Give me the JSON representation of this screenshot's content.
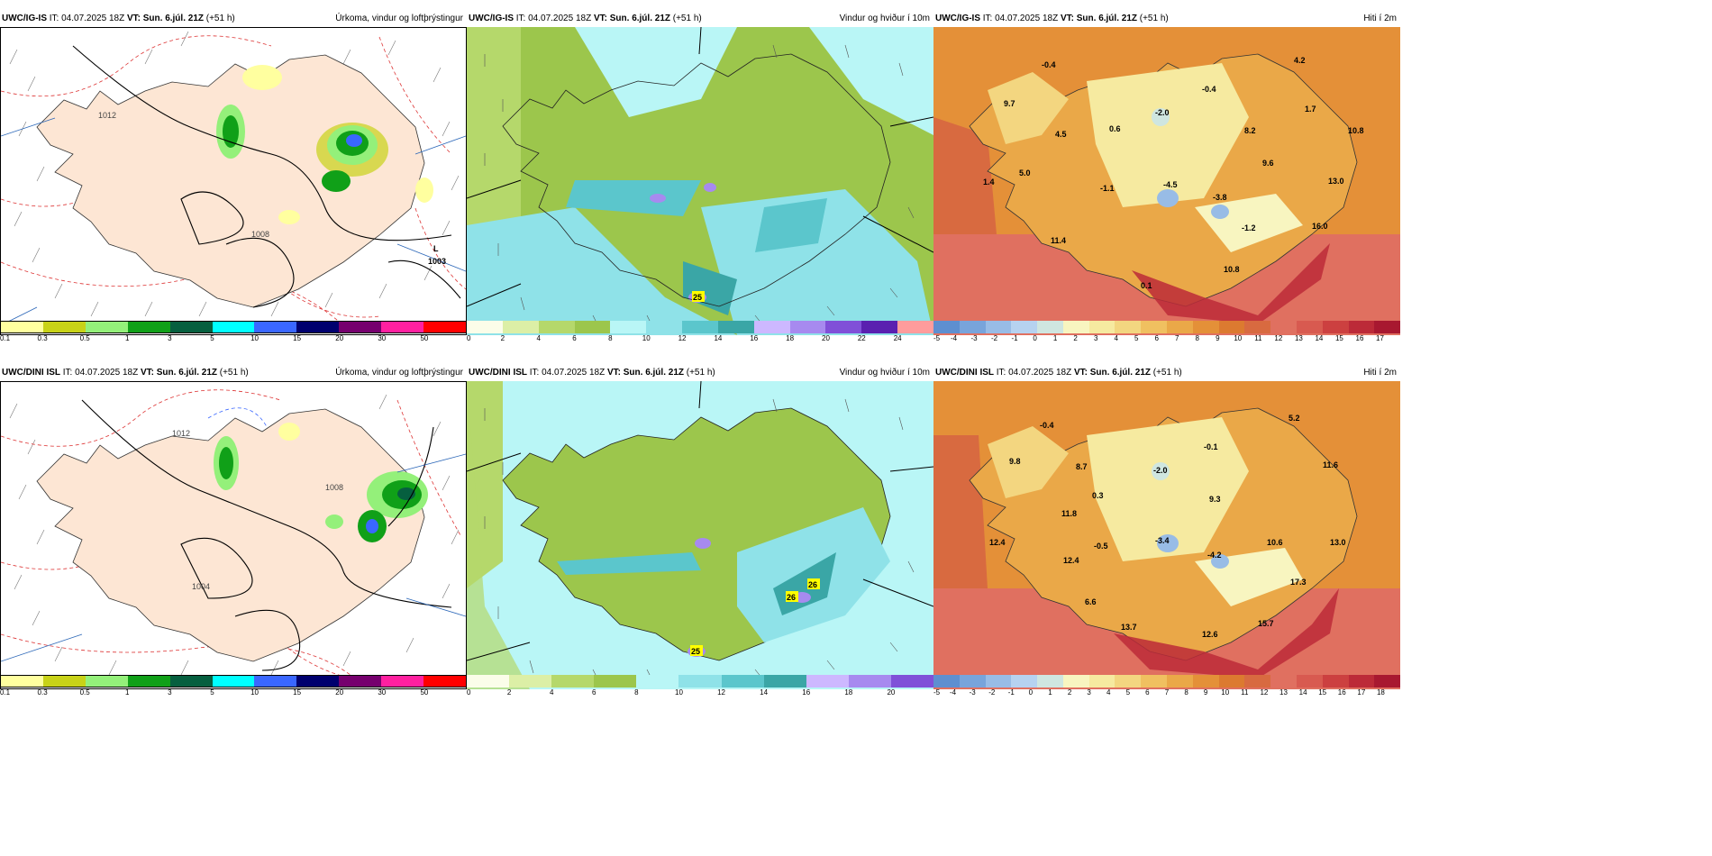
{
  "panels": [
    {
      "model": "UWC/IG-IS",
      "it": "IT: 04.07.2025 18Z",
      "vt": "VT: Sun. 6.júl. 21Z",
      "lead": "(+51 h)",
      "title": "Úrkoma, vindur og loftþrýstingur"
    },
    {
      "model": "UWC/IG-IS",
      "it": "IT: 04.07.2025 18Z",
      "vt": "VT: Sun. 6.júl. 21Z",
      "lead": "(+51 h)",
      "title": "Vindur og hviður í 10m"
    },
    {
      "model": "UWC/IG-IS",
      "it": "IT: 04.07.2025 18Z",
      "vt": "VT: Sun. 6.júl. 21Z",
      "lead": "(+51 h)",
      "title": "Hiti í 2m"
    },
    {
      "model": "UWC/DINI ISL",
      "it": "IT: 04.07.2025 18Z",
      "vt": "VT: Sun. 6.júl. 21Z",
      "lead": "(+51 h)",
      "title": "Úrkoma, vindur og loftþrýstingur"
    },
    {
      "model": "UWC/DINI ISL",
      "it": "IT: 04.07.2025 18Z",
      "vt": "VT: Sun. 6.júl. 21Z",
      "lead": "(+51 h)",
      "title": "Vindur og hviður í 10m"
    },
    {
      "model": "UWC/DINI ISL",
      "it": "IT: 04.07.2025 18Z",
      "vt": "VT: Sun. 6.júl. 21Z",
      "lead": "(+51 h)",
      "title": "Hiti í 2m"
    }
  ],
  "precip_scale": {
    "colors": [
      "#ffff9f",
      "#c8d218",
      "#94f07a",
      "#10a018",
      "#065f3f",
      "#00ffff",
      "#3a67ff",
      "#00006e",
      "#76006e",
      "#ff20a0",
      "#ff0000"
    ],
    "ticks": [
      "0.1",
      "0.3",
      "0.5",
      "1",
      "3",
      "5",
      "10",
      "15",
      "20",
      "30",
      "50"
    ]
  },
  "wind_scale_top": {
    "colors": [
      "#fbfde9",
      "#dcefa6",
      "#b5d86b",
      "#9cc64c",
      "#b9f6f6",
      "#8fe2e8",
      "#5bc6cc",
      "#3aa6a6",
      "#cdb8ff",
      "#a78aef",
      "#8050d8",
      "#5a20b0",
      "#ff9c9c"
    ],
    "ticks": [
      "0",
      "2",
      "4",
      "6",
      "8",
      "10",
      "12",
      "14",
      "16",
      "18",
      "20",
      "22",
      "24"
    ]
  },
  "wind_scale_bottom": {
    "colors": [
      "#fbfde9",
      "#dcefa6",
      "#b5d86b",
      "#9cc64c",
      "#b9f6f6",
      "#8fe2e8",
      "#5bc6cc",
      "#3aa6a6",
      "#cdb8ff",
      "#a78aef",
      "#8050d8"
    ],
    "ticks": [
      "0",
      "2",
      "4",
      "6",
      "8",
      "10",
      "12",
      "14",
      "16",
      "18",
      "20"
    ]
  },
  "temp_scale_top": {
    "colors": [
      "#5e8fd0",
      "#78a4db",
      "#98bce6",
      "#b6d2f0",
      "#cfe6e0",
      "#f8f5c0",
      "#f6eaa0",
      "#f3d680",
      "#f0c060",
      "#eaa848",
      "#e49038",
      "#dc7a30",
      "#d86a40",
      "#e07060",
      "#d85a50",
      "#cc4040",
      "#bc2a38",
      "#a81830"
    ],
    "ticks": [
      "-5",
      "-4",
      "-3",
      "-2",
      "-1",
      "0",
      "1",
      "2",
      "3",
      "4",
      "5",
      "6",
      "7",
      "8",
      "9",
      "10",
      "11",
      "12",
      "13",
      "14",
      "15",
      "16",
      "17"
    ]
  },
  "temp_scale_bottom": {
    "colors": [
      "#5e8fd0",
      "#78a4db",
      "#98bce6",
      "#b6d2f0",
      "#cfe6e0",
      "#f8f5c0",
      "#f6eaa0",
      "#f3d680",
      "#f0c060",
      "#eaa848",
      "#e49038",
      "#dc7a30",
      "#d86a40",
      "#e07060",
      "#d85a50",
      "#cc4040",
      "#bc2a38",
      "#a81830"
    ],
    "ticks": [
      "-5",
      "-4",
      "-3",
      "-2",
      "-1",
      "0",
      "1",
      "2",
      "3",
      "4",
      "5",
      "6",
      "7",
      "8",
      "9",
      "10",
      "11",
      "12",
      "13",
      "14",
      "15",
      "16",
      "17",
      "18"
    ]
  },
  "top_precip_labels": {
    "low_letter": "L",
    "low_value": "1003",
    "isobar_a": "1012",
    "isobar_b": "1008"
  },
  "bottom_precip_labels": {
    "isobar_a": "1012",
    "isobar_b": "1008",
    "isobar_c": "1004"
  },
  "top_temp_labels": [
    "-0.4",
    "9.7",
    "4.5",
    "0.6",
    "-2.0",
    "-0.4",
    "4.2",
    "1.7",
    "8.2",
    "10.8",
    "5.0",
    "1.4",
    "-1.1",
    "-4.5",
    "9.6",
    "13.0",
    "-3.8",
    "-1.2",
    "16.0",
    "11.4",
    "10.8",
    "0.1"
  ],
  "bottom_temp_labels": [
    "-0.4",
    "9.8",
    "8.7",
    "0.3",
    "-2.0",
    "-0.1",
    "5.2",
    "11.6",
    "9.3",
    "11.8",
    "12.4",
    "-0.5",
    "-3.4",
    "-4.2",
    "10.6",
    "13.0",
    "12.4",
    "6.6",
    "17.3",
    "13.7",
    "12.6",
    "15.7"
  ],
  "top_gust_label": "25",
  "bottom_gust_labels": [
    "25",
    "26",
    "26"
  ]
}
